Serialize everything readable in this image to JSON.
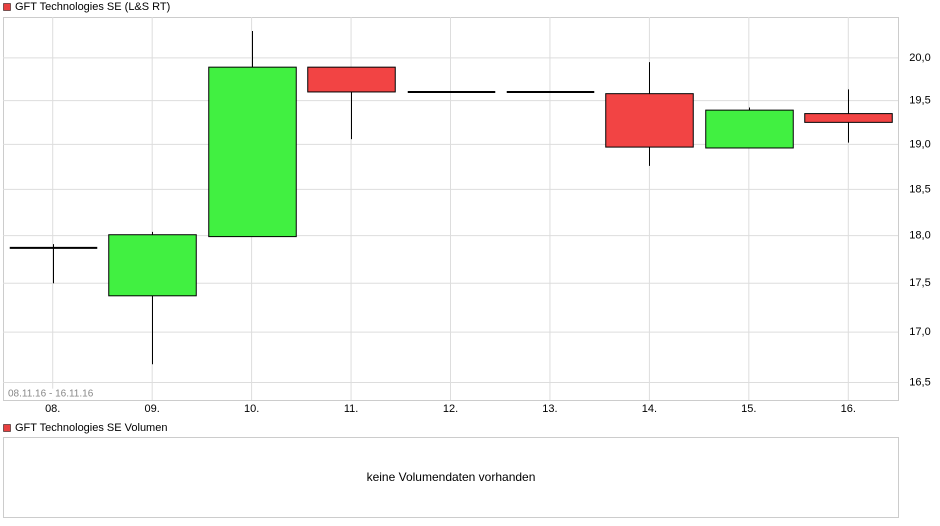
{
  "chart_data": [
    {
      "type": "candlestick",
      "title": "GFT Technologies SE (L&S RT)",
      "subtitle": "08.11.16 - 16.11.16",
      "color": "#e84040",
      "up_color": "#41f041",
      "down_color": "#f24444",
      "categories": [
        "08.",
        "09.",
        "10.",
        "11.",
        "12.",
        "13.",
        "14.",
        "15.",
        "16."
      ],
      "open": [
        17.87,
        17.37,
        17.99,
        19.89,
        19.6,
        19.6,
        19.58,
        18.96,
        19.35
      ],
      "high": [
        17.91,
        18.04,
        20.32,
        19.89,
        19.6,
        19.6,
        19.95,
        19.42,
        19.63
      ],
      "low": [
        17.5,
        16.68,
        17.99,
        19.06,
        19.6,
        19.6,
        18.76,
        18.96,
        19.02
      ],
      "close": [
        17.87,
        18.01,
        19.89,
        19.6,
        19.6,
        19.6,
        18.97,
        19.39,
        19.25
      ],
      "ylim": [
        16.33,
        20.49
      ],
      "log_y": true,
      "grid": true,
      "yticks": [
        {
          "value": 16.5,
          "label": "16,5"
        },
        {
          "value": 17,
          "label": "17,0"
        },
        {
          "value": 17.5,
          "label": "17,5"
        },
        {
          "value": 18,
          "label": "18,0"
        },
        {
          "value": 18.5,
          "label": "18,5"
        },
        {
          "value": 19,
          "label": "19,0"
        },
        {
          "value": 19.5,
          "label": "19,5"
        },
        {
          "value": 20,
          "label": "20,0"
        }
      ]
    },
    {
      "type": "bar",
      "title": "GFT Technologies SE Volumen",
      "color": "#e84040",
      "note": "keine Volumendaten vorhanden"
    }
  ]
}
